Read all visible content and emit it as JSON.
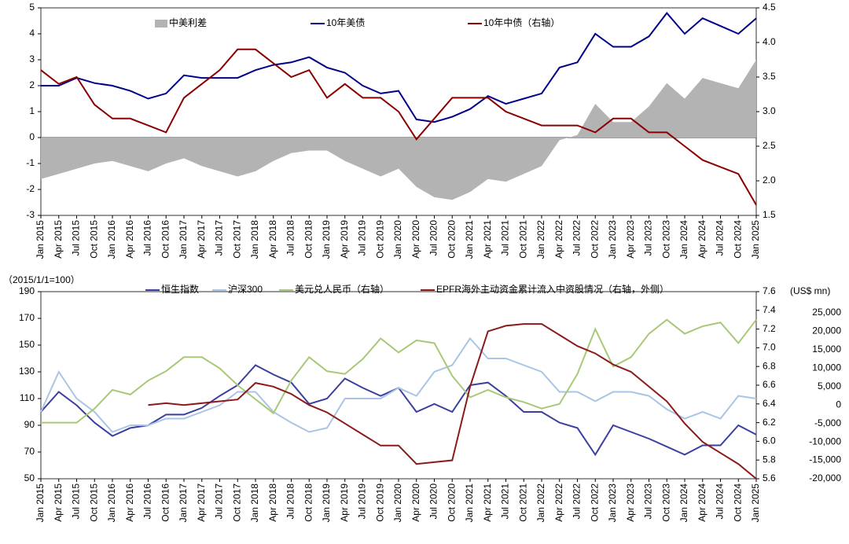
{
  "chart_data": [
    {
      "type": "line",
      "categories": [
        "Jan 2015",
        "Apr 2015",
        "Jul 2015",
        "Oct 2015",
        "Jan 2016",
        "Apr 2016",
        "Jul 2016",
        "Oct 2016",
        "Jan 2017",
        "Apr 2017",
        "Jul 2017",
        "Oct 2017",
        "Jan 2018",
        "Apr 2018",
        "Jul 2018",
        "Oct 2018",
        "Jan 2019",
        "Apr 2019",
        "Jul 2019",
        "Oct 2019",
        "Jan 2020",
        "Apr 2020",
        "Jul 2020",
        "Oct 2020",
        "Jan 2021",
        "Apr 2021",
        "Jul 2021",
        "Oct 2021",
        "Jan 2022",
        "Apr 2022",
        "Jul 2022",
        "Oct 2022",
        "Jan 2023",
        "Apr 2023",
        "Jul 2023",
        "Oct 2023",
        "Jan 2024",
        "Apr 2024",
        "Jul 2024",
        "Oct 2024",
        "Jan 2025"
      ],
      "series": [
        {
          "name": "中美利差",
          "color": "#b3b3b3",
          "kind": "area",
          "axis": "y",
          "values": [
            -1.6,
            -1.4,
            -1.2,
            -1.0,
            -0.9,
            -1.1,
            -1.3,
            -1.0,
            -0.8,
            -1.1,
            -1.3,
            -1.5,
            -1.3,
            -0.9,
            -0.6,
            -0.5,
            -0.5,
            -0.9,
            -1.2,
            -1.5,
            -1.2,
            -1.9,
            -2.3,
            -2.4,
            -2.1,
            -1.6,
            -1.7,
            -1.4,
            -1.1,
            -0.1,
            0.1,
            1.3,
            0.6,
            0.6,
            1.2,
            2.1,
            1.5,
            2.3,
            2.1,
            1.9,
            3.0
          ]
        },
        {
          "name": "10年美债",
          "color": "#00008b",
          "kind": "line",
          "axis": "y",
          "values": [
            2.0,
            2.0,
            2.3,
            2.1,
            2.0,
            1.8,
            1.5,
            1.7,
            2.4,
            2.3,
            2.3,
            2.3,
            2.6,
            2.8,
            2.9,
            3.1,
            2.7,
            2.5,
            2.0,
            1.7,
            1.8,
            0.7,
            0.6,
            0.8,
            1.1,
            1.6,
            1.3,
            1.5,
            1.7,
            2.7,
            2.9,
            4.0,
            3.5,
            3.5,
            3.9,
            4.8,
            4.0,
            4.6,
            4.3,
            4.0,
            4.6
          ]
        },
        {
          "name": "10年中债（右轴）",
          "color": "#8b0000",
          "kind": "line",
          "axis": "y2",
          "values": [
            3.6,
            3.4,
            3.5,
            3.1,
            2.9,
            2.9,
            2.8,
            2.7,
            3.2,
            3.4,
            3.6,
            3.9,
            3.9,
            3.7,
            3.5,
            3.6,
            3.2,
            3.4,
            3.2,
            3.2,
            3.0,
            2.6,
            2.9,
            3.2,
            3.2,
            3.2,
            3.0,
            2.9,
            2.8,
            2.8,
            2.8,
            2.7,
            2.9,
            2.9,
            2.7,
            2.7,
            2.5,
            2.3,
            2.2,
            2.1,
            1.65
          ]
        }
      ],
      "ylim": [
        -3,
        5
      ],
      "yticks": [
        -3,
        -2,
        -1,
        0,
        1,
        2,
        3,
        4,
        5
      ],
      "y2lim": [
        1.5,
        4.5
      ],
      "y2ticks": [
        1.5,
        {
          "value": 2,
          "label": "2.0"
        },
        2.5,
        {
          "value": 3,
          "label": "3.0"
        },
        3.5,
        {
          "value": 4,
          "label": "4.0"
        },
        4.5
      ],
      "negative_tick_color": "#e00000"
    },
    {
      "type": "line",
      "ylabel": "（2015/1/1=100）",
      "y3label": "(US$ mn)",
      "categories": [
        "Jan 2015",
        "Apr 2015",
        "Jul 2015",
        "Oct 2015",
        "Jan 2016",
        "Apr 2016",
        "Jul 2016",
        "Oct 2016",
        "Jan 2017",
        "Apr 2017",
        "Jul 2017",
        "Oct 2017",
        "Jan 2018",
        "Apr 2018",
        "Jul 2018",
        "Oct 2018",
        "Jan 2019",
        "Apr 2019",
        "Jul 2019",
        "Oct 2019",
        "Jan 2020",
        "Apr 2020",
        "Jul 2020",
        "Oct 2020",
        "Jan 2021",
        "Apr 2021",
        "Jul 2021",
        "Oct 2021",
        "Jan 2022",
        "Apr 2022",
        "Jul 2022",
        "Oct 2022",
        "Jan 2023",
        "Apr 2023",
        "Jul 2023",
        "Oct 2023",
        "Jan 2024",
        "Apr 2024",
        "Jul 2024",
        "Oct 2024",
        "Jan 2025"
      ],
      "series": [
        {
          "name": "恒生指数",
          "color": "#3b3f9f",
          "kind": "line",
          "axis": "y",
          "values": [
            100,
            115,
            105,
            92,
            82,
            88,
            90,
            98,
            98,
            103,
            112,
            120,
            135,
            128,
            122,
            106,
            110,
            125,
            118,
            112,
            118,
            100,
            106,
            100,
            120,
            122,
            112,
            100,
            100,
            92,
            88,
            68,
            90,
            85,
            80,
            74,
            68,
            75,
            75,
            90,
            83
          ]
        },
        {
          "name": "沪深300",
          "color": "#a9c4e6",
          "kind": "line",
          "axis": "y",
          "values": [
            100,
            130,
            110,
            100,
            85,
            90,
            90,
            95,
            95,
            100,
            105,
            115,
            115,
            100,
            92,
            85,
            88,
            110,
            110,
            110,
            118,
            112,
            130,
            135,
            155,
            140,
            140,
            135,
            130,
            115,
            115,
            108,
            115,
            115,
            112,
            102,
            95,
            100,
            95,
            112,
            110
          ]
        },
        {
          "name": "美元兑人民币（右轴）",
          "color": "#a8c878",
          "kind": "line",
          "axis": "y2",
          "values": [
            6.2,
            6.2,
            6.2,
            6.35,
            6.55,
            6.5,
            6.65,
            6.75,
            6.9,
            6.9,
            6.78,
            6.6,
            6.45,
            6.3,
            6.65,
            6.9,
            6.75,
            6.72,
            6.88,
            7.1,
            6.95,
            7.08,
            7.05,
            6.7,
            6.47,
            6.55,
            6.47,
            6.42,
            6.35,
            6.4,
            6.72,
            7.2,
            6.8,
            6.9,
            7.15,
            7.3,
            7.15,
            7.23,
            7.27,
            7.05,
            7.3
          ]
        },
        {
          "name": "EPFR海外主动资金累计流入中资股情况（右轴，外侧）",
          "color": "#8b1a1a",
          "kind": "line",
          "axis": "y3",
          "values": [
            null,
            null,
            null,
            null,
            null,
            null,
            0,
            500,
            0,
            500,
            1000,
            1500,
            6000,
            5000,
            3000,
            0,
            -2000,
            -5000,
            -8000,
            -11000,
            -11000,
            -16000,
            -15500,
            -15000,
            5000,
            20000,
            21500,
            22000,
            22000,
            19000,
            16000,
            14000,
            11000,
            9000,
            5000,
            1000,
            -5000,
            -10000,
            -13000,
            -16000,
            -20000
          ]
        }
      ],
      "ylim": [
        50,
        190
      ],
      "yticks": [
        50,
        70,
        90,
        110,
        130,
        150,
        170,
        190
      ],
      "y2lim": [
        5.6,
        7.6
      ],
      "y2ticks": [
        5.6,
        5.8,
        {
          "value": 6,
          "label": "6.0"
        },
        6.2,
        6.4,
        6.6,
        6.8,
        {
          "value": 7,
          "label": "7.0"
        },
        7.2,
        7.4,
        7.6
      ],
      "y3lim": [
        -20000,
        30760
      ],
      "y3ticks": [
        {
          "value": -20000,
          "label": "-20,000"
        },
        {
          "value": -15000,
          "label": "-15,000"
        },
        {
          "value": -10000,
          "label": "-10,000"
        },
        {
          "value": -5000,
          "label": "-5,000"
        },
        0,
        {
          "value": 5000,
          "label": "5,000"
        },
        {
          "value": 10000,
          "label": "10,000"
        },
        {
          "value": 15000,
          "label": "15,000"
        },
        {
          "value": 20000,
          "label": "20,000"
        },
        {
          "value": 25000,
          "label": "25,000"
        }
      ],
      "negative_tick_color": "#e00000"
    }
  ]
}
